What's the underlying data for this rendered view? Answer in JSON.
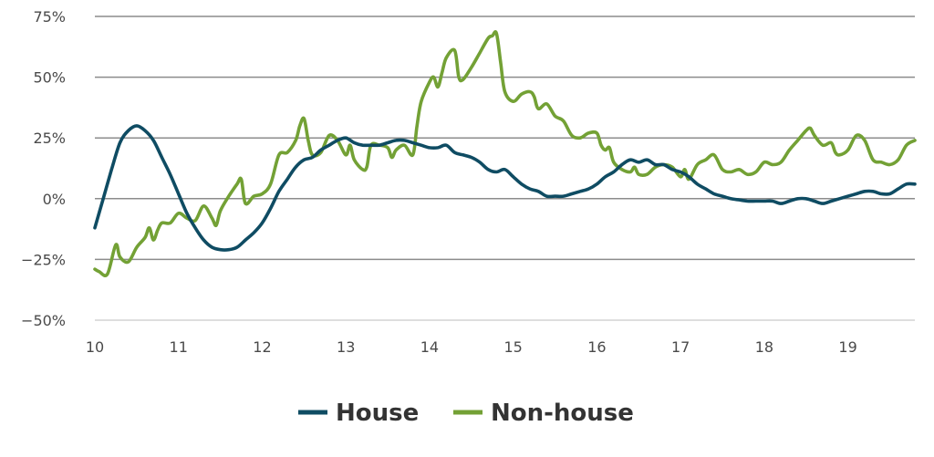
{
  "chart_data": {
    "type": "line",
    "title": "",
    "xlabel": "",
    "ylabel": "",
    "xlim": [
      10,
      19.8
    ],
    "ylim": [
      -50,
      75
    ],
    "grid": true,
    "legend_position": "bottom-center",
    "y_ticks": [
      {
        "value": 75,
        "label": "75%"
      },
      {
        "value": 50,
        "label": "50%"
      },
      {
        "value": 25,
        "label": "25%"
      },
      {
        "value": 0,
        "label": "0%"
      },
      {
        "value": -25,
        "label": "−25%"
      },
      {
        "value": -50,
        "label": "−50%"
      }
    ],
    "x_ticks": [
      {
        "value": 10,
        "label": "10"
      },
      {
        "value": 11,
        "label": "11"
      },
      {
        "value": 12,
        "label": "12"
      },
      {
        "value": 13,
        "label": "13"
      },
      {
        "value": 14,
        "label": "14"
      },
      {
        "value": 15,
        "label": "15"
      },
      {
        "value": 16,
        "label": "16"
      },
      {
        "value": 17,
        "label": "17"
      },
      {
        "value": 18,
        "label": "18"
      },
      {
        "value": 19,
        "label": "19"
      }
    ],
    "series": [
      {
        "name": "House",
        "color": "#0f4c63",
        "points": [
          [
            10.0,
            -12
          ],
          [
            10.1,
            0
          ],
          [
            10.2,
            12
          ],
          [
            10.3,
            23
          ],
          [
            10.4,
            28
          ],
          [
            10.5,
            30
          ],
          [
            10.6,
            28
          ],
          [
            10.7,
            24
          ],
          [
            10.8,
            17
          ],
          [
            10.9,
            10
          ],
          [
            11.0,
            2
          ],
          [
            11.1,
            -6
          ],
          [
            11.2,
            -12
          ],
          [
            11.3,
            -17
          ],
          [
            11.4,
            -20
          ],
          [
            11.5,
            -21
          ],
          [
            11.6,
            -21
          ],
          [
            11.7,
            -20
          ],
          [
            11.8,
            -17
          ],
          [
            11.9,
            -14
          ],
          [
            12.0,
            -10
          ],
          [
            12.1,
            -4
          ],
          [
            12.2,
            3
          ],
          [
            12.3,
            8
          ],
          [
            12.4,
            13
          ],
          [
            12.5,
            16
          ],
          [
            12.6,
            17
          ],
          [
            12.7,
            20
          ],
          [
            12.8,
            22
          ],
          [
            12.9,
            24
          ],
          [
            13.0,
            25
          ],
          [
            13.1,
            23
          ],
          [
            13.2,
            22
          ],
          [
            13.3,
            22
          ],
          [
            13.4,
            22
          ],
          [
            13.5,
            23
          ],
          [
            13.6,
            24
          ],
          [
            13.7,
            24
          ],
          [
            13.8,
            23
          ],
          [
            13.9,
            22
          ],
          [
            14.0,
            21
          ],
          [
            14.1,
            21
          ],
          [
            14.2,
            22
          ],
          [
            14.3,
            19
          ],
          [
            14.4,
            18
          ],
          [
            14.5,
            17
          ],
          [
            14.6,
            15
          ],
          [
            14.7,
            12
          ],
          [
            14.8,
            11
          ],
          [
            14.9,
            12
          ],
          [
            15.0,
            9
          ],
          [
            15.1,
            6
          ],
          [
            15.2,
            4
          ],
          [
            15.3,
            3
          ],
          [
            15.4,
            1
          ],
          [
            15.5,
            1
          ],
          [
            15.6,
            1
          ],
          [
            15.7,
            2
          ],
          [
            15.8,
            3
          ],
          [
            15.9,
            4
          ],
          [
            16.0,
            6
          ],
          [
            16.1,
            9
          ],
          [
            16.2,
            11
          ],
          [
            16.3,
            14
          ],
          [
            16.4,
            16
          ],
          [
            16.5,
            15
          ],
          [
            16.6,
            16
          ],
          [
            16.7,
            14
          ],
          [
            16.8,
            14
          ],
          [
            16.9,
            12
          ],
          [
            17.0,
            11
          ],
          [
            17.1,
            9
          ],
          [
            17.2,
            6
          ],
          [
            17.3,
            4
          ],
          [
            17.4,
            2
          ],
          [
            17.5,
            1
          ],
          [
            17.6,
            0
          ],
          [
            17.7,
            -0.5
          ],
          [
            17.8,
            -1
          ],
          [
            17.9,
            -1
          ],
          [
            18.0,
            -1
          ],
          [
            18.1,
            -1
          ],
          [
            18.2,
            -2
          ],
          [
            18.3,
            -1
          ],
          [
            18.4,
            0
          ],
          [
            18.5,
            0
          ],
          [
            18.6,
            -1
          ],
          [
            18.7,
            -2
          ],
          [
            18.8,
            -1
          ],
          [
            18.9,
            0
          ],
          [
            19.0,
            1
          ],
          [
            19.1,
            2
          ],
          [
            19.2,
            3
          ],
          [
            19.3,
            3
          ],
          [
            19.4,
            2
          ],
          [
            19.5,
            2
          ],
          [
            19.6,
            4
          ],
          [
            19.7,
            6
          ],
          [
            19.8,
            6
          ]
        ]
      },
      {
        "name": "Non-house",
        "color": "#73a135",
        "points": [
          [
            10.0,
            -29
          ],
          [
            10.05,
            -30
          ],
          [
            10.15,
            -31
          ],
          [
            10.25,
            -19
          ],
          [
            10.3,
            -24
          ],
          [
            10.4,
            -26
          ],
          [
            10.5,
            -20
          ],
          [
            10.6,
            -16
          ],
          [
            10.65,
            -12
          ],
          [
            10.7,
            -17
          ],
          [
            10.75,
            -13
          ],
          [
            10.8,
            -10
          ],
          [
            10.9,
            -10
          ],
          [
            11.0,
            -6
          ],
          [
            11.1,
            -8
          ],
          [
            11.2,
            -9
          ],
          [
            11.3,
            -3
          ],
          [
            11.4,
            -8
          ],
          [
            11.45,
            -11
          ],
          [
            11.5,
            -5
          ],
          [
            11.6,
            1
          ],
          [
            11.7,
            6
          ],
          [
            11.75,
            8
          ],
          [
            11.8,
            -2
          ],
          [
            11.9,
            1
          ],
          [
            12.0,
            2
          ],
          [
            12.1,
            6
          ],
          [
            12.2,
            18
          ],
          [
            12.3,
            19
          ],
          [
            12.4,
            24
          ],
          [
            12.45,
            30
          ],
          [
            12.5,
            33
          ],
          [
            12.55,
            24
          ],
          [
            12.6,
            18
          ],
          [
            12.7,
            19
          ],
          [
            12.8,
            26
          ],
          [
            12.9,
            24
          ],
          [
            13.0,
            18
          ],
          [
            13.05,
            22
          ],
          [
            13.1,
            16
          ],
          [
            13.2,
            12
          ],
          [
            13.25,
            13
          ],
          [
            13.3,
            22
          ],
          [
            13.4,
            22
          ],
          [
            13.5,
            21
          ],
          [
            13.55,
            17
          ],
          [
            13.6,
            20
          ],
          [
            13.7,
            22
          ],
          [
            13.8,
            18
          ],
          [
            13.85,
            30
          ],
          [
            13.9,
            40
          ],
          [
            14.0,
            48
          ],
          [
            14.05,
            50
          ],
          [
            14.1,
            46
          ],
          [
            14.15,
            52
          ],
          [
            14.2,
            58
          ],
          [
            14.3,
            61
          ],
          [
            14.35,
            50
          ],
          [
            14.4,
            49
          ],
          [
            14.5,
            54
          ],
          [
            14.6,
            60
          ],
          [
            14.7,
            66
          ],
          [
            14.75,
            67
          ],
          [
            14.8,
            68
          ],
          [
            14.85,
            56
          ],
          [
            14.9,
            44
          ],
          [
            15.0,
            40
          ],
          [
            15.1,
            43
          ],
          [
            15.2,
            44
          ],
          [
            15.25,
            42
          ],
          [
            15.3,
            37
          ],
          [
            15.4,
            39
          ],
          [
            15.5,
            34
          ],
          [
            15.6,
            32
          ],
          [
            15.7,
            26
          ],
          [
            15.8,
            25
          ],
          [
            15.9,
            27
          ],
          [
            16.0,
            27
          ],
          [
            16.05,
            22
          ],
          [
            16.1,
            20
          ],
          [
            16.15,
            21
          ],
          [
            16.2,
            15
          ],
          [
            16.3,
            12
          ],
          [
            16.4,
            11
          ],
          [
            16.45,
            13
          ],
          [
            16.5,
            10
          ],
          [
            16.6,
            10
          ],
          [
            16.7,
            13
          ],
          [
            16.8,
            14
          ],
          [
            16.9,
            13
          ],
          [
            17.0,
            9
          ],
          [
            17.05,
            12
          ],
          [
            17.1,
            8
          ],
          [
            17.2,
            14
          ],
          [
            17.3,
            16
          ],
          [
            17.4,
            18
          ],
          [
            17.5,
            12
          ],
          [
            17.6,
            11
          ],
          [
            17.7,
            12
          ],
          [
            17.8,
            10
          ],
          [
            17.9,
            11
          ],
          [
            18.0,
            15
          ],
          [
            18.1,
            14
          ],
          [
            18.2,
            15
          ],
          [
            18.3,
            20
          ],
          [
            18.4,
            24
          ],
          [
            18.5,
            28
          ],
          [
            18.55,
            29
          ],
          [
            18.6,
            26
          ],
          [
            18.7,
            22
          ],
          [
            18.8,
            23
          ],
          [
            18.85,
            19
          ],
          [
            18.9,
            18
          ],
          [
            19.0,
            20
          ],
          [
            19.1,
            26
          ],
          [
            19.2,
            24
          ],
          [
            19.3,
            16
          ],
          [
            19.4,
            15
          ],
          [
            19.5,
            14
          ],
          [
            19.6,
            16
          ],
          [
            19.7,
            22
          ],
          [
            19.8,
            24
          ]
        ]
      }
    ]
  }
}
